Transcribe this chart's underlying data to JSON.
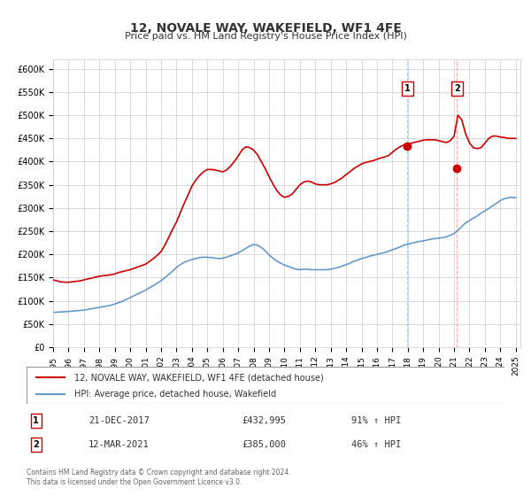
{
  "title": "12, NOVALE WAY, WAKEFIELD, WF1 4FE",
  "subtitle": "Price paid vs. HM Land Registry's House Price Index (HPI)",
  "title_fontsize": 11,
  "subtitle_fontsize": 9,
  "hpi_color": "#6699cc",
  "price_color": "#cc0000",
  "background_color": "#ffffff",
  "grid_color": "#cccccc",
  "ylim": [
    0,
    620000
  ],
  "xlim_start": 1995.0,
  "xlim_end": 2025.3,
  "yticks": [
    0,
    50000,
    100000,
    150000,
    200000,
    250000,
    300000,
    350000,
    400000,
    450000,
    500000,
    550000,
    600000
  ],
  "ytick_labels": [
    "£0",
    "£50K",
    "£100K",
    "£150K",
    "£200K",
    "£250K",
    "£300K",
    "£350K",
    "£400K",
    "£450K",
    "£500K",
    "£550K",
    "£600K"
  ],
  "xticks": [
    1995,
    1996,
    1997,
    1998,
    1999,
    2000,
    2001,
    2002,
    2003,
    2004,
    2005,
    2006,
    2007,
    2008,
    2009,
    2010,
    2011,
    2012,
    2013,
    2014,
    2015,
    2016,
    2017,
    2018,
    2019,
    2020,
    2021,
    2022,
    2023,
    2024,
    2025
  ],
  "sale1_x": 2017.97,
  "sale1_y": 432995,
  "sale1_label": "1",
  "sale1_date": "21-DEC-2017",
  "sale1_price": "£432,995",
  "sale1_hpi": "91% ↑ HPI",
  "sale2_x": 2021.19,
  "sale2_y": 385000,
  "sale2_label": "2",
  "sale2_date": "12-MAR-2021",
  "sale2_price": "£385,000",
  "sale2_hpi": "46% ↑ HPI",
  "legend_label1": "12, NOVALE WAY, WAKEFIELD, WF1 4FE (detached house)",
  "legend_label2": "HPI: Average price, detached house, Wakefield",
  "footer_line1": "Contains HM Land Registry data © Crown copyright and database right 2024.",
  "footer_line2": "This data is licensed under the Open Government Licence v3.0.",
  "hpi_x": [
    1995.0,
    1995.25,
    1995.5,
    1995.75,
    1996.0,
    1996.25,
    1996.5,
    1996.75,
    1997.0,
    1997.25,
    1997.5,
    1997.75,
    1998.0,
    1998.25,
    1998.5,
    1998.75,
    1999.0,
    1999.25,
    1999.5,
    1999.75,
    2000.0,
    2000.25,
    2000.5,
    2000.75,
    2001.0,
    2001.25,
    2001.5,
    2001.75,
    2002.0,
    2002.25,
    2002.5,
    2002.75,
    2003.0,
    2003.25,
    2003.5,
    2003.75,
    2004.0,
    2004.25,
    2004.5,
    2004.75,
    2005.0,
    2005.25,
    2005.5,
    2005.75,
    2006.0,
    2006.25,
    2006.5,
    2006.75,
    2007.0,
    2007.25,
    2007.5,
    2007.75,
    2008.0,
    2008.25,
    2008.5,
    2008.75,
    2009.0,
    2009.25,
    2009.5,
    2009.75,
    2010.0,
    2010.25,
    2010.5,
    2010.75,
    2011.0,
    2011.25,
    2011.5,
    2011.75,
    2012.0,
    2012.25,
    2012.5,
    2012.75,
    2013.0,
    2013.25,
    2013.5,
    2013.75,
    2014.0,
    2014.25,
    2014.5,
    2014.75,
    2015.0,
    2015.25,
    2015.5,
    2015.75,
    2016.0,
    2016.25,
    2016.5,
    2016.75,
    2017.0,
    2017.25,
    2017.5,
    2017.75,
    2018.0,
    2018.25,
    2018.5,
    2018.75,
    2019.0,
    2019.25,
    2019.5,
    2019.75,
    2020.0,
    2020.25,
    2020.5,
    2020.75,
    2021.0,
    2021.25,
    2021.5,
    2021.75,
    2022.0,
    2022.25,
    2022.5,
    2022.75,
    2023.0,
    2023.25,
    2023.5,
    2023.75,
    2024.0,
    2024.25,
    2024.5,
    2024.75,
    2025.0
  ],
  "hpi_y": [
    75000,
    75500,
    76000,
    76500,
    77000,
    77800,
    78500,
    79200,
    80000,
    81500,
    83000,
    84500,
    86000,
    87500,
    89000,
    90500,
    93000,
    96000,
    99000,
    103000,
    107000,
    111000,
    115000,
    119000,
    123000,
    128000,
    133000,
    138000,
    143000,
    150000,
    157000,
    164000,
    172000,
    178000,
    183000,
    186000,
    189000,
    191000,
    193000,
    194000,
    194000,
    193000,
    192000,
    191000,
    192000,
    194000,
    197000,
    200000,
    203000,
    208000,
    213000,
    218000,
    221000,
    220000,
    215000,
    208000,
    199000,
    192000,
    186000,
    181000,
    177000,
    174000,
    171000,
    168000,
    167000,
    168000,
    168000,
    167000,
    167000,
    167000,
    167000,
    167000,
    168000,
    170000,
    172000,
    175000,
    178000,
    181000,
    185000,
    188000,
    191000,
    193000,
    196000,
    198000,
    200000,
    202000,
    204000,
    207000,
    210000,
    213000,
    216000,
    220000,
    222000,
    224000,
    226000,
    228000,
    229000,
    231000,
    233000,
    234000,
    235000,
    236000,
    238000,
    241000,
    245000,
    252000,
    260000,
    268000,
    273000,
    278000,
    283000,
    289000,
    294000,
    299000,
    305000,
    310000,
    316000,
    320000,
    322000,
    323000,
    322000
  ],
  "price_x": [
    1995.0,
    1995.25,
    1995.5,
    1995.75,
    1996.0,
    1996.25,
    1996.5,
    1996.75,
    1997.0,
    1997.25,
    1997.5,
    1997.75,
    1998.0,
    1998.25,
    1998.5,
    1998.75,
    1999.0,
    1999.25,
    1999.5,
    1999.75,
    2000.0,
    2000.25,
    2000.5,
    2000.75,
    2001.0,
    2001.25,
    2001.5,
    2001.75,
    2002.0,
    2002.25,
    2002.5,
    2002.75,
    2003.0,
    2003.25,
    2003.5,
    2003.75,
    2004.0,
    2004.25,
    2004.5,
    2004.75,
    2005.0,
    2005.25,
    2005.5,
    2005.75,
    2006.0,
    2006.25,
    2006.5,
    2006.75,
    2007.0,
    2007.25,
    2007.5,
    2007.75,
    2008.0,
    2008.25,
    2008.5,
    2008.75,
    2009.0,
    2009.25,
    2009.5,
    2009.75,
    2010.0,
    2010.25,
    2010.5,
    2010.75,
    2011.0,
    2011.25,
    2011.5,
    2011.75,
    2012.0,
    2012.25,
    2012.5,
    2012.75,
    2013.0,
    2013.25,
    2013.5,
    2013.75,
    2014.0,
    2014.25,
    2014.5,
    2014.75,
    2015.0,
    2015.25,
    2015.5,
    2015.75,
    2016.0,
    2016.25,
    2016.5,
    2016.75,
    2017.0,
    2017.25,
    2017.5,
    2017.75,
    2018.0,
    2018.25,
    2018.5,
    2018.75,
    2019.0,
    2019.25,
    2019.5,
    2019.75,
    2020.0,
    2020.25,
    2020.5,
    2020.75,
    2021.0,
    2021.25,
    2021.5,
    2021.75,
    2022.0,
    2022.25,
    2022.5,
    2022.75,
    2023.0,
    2023.25,
    2023.5,
    2023.75,
    2024.0,
    2024.25,
    2024.5,
    2024.75,
    2025.0
  ],
  "price_y": [
    145000,
    143000,
    141000,
    140000,
    140000,
    141000,
    142000,
    143000,
    145000,
    147000,
    149000,
    151000,
    153000,
    154000,
    155000,
    156000,
    158000,
    161000,
    163000,
    165000,
    167000,
    170000,
    173000,
    176000,
    179000,
    185000,
    191000,
    198000,
    206000,
    220000,
    237000,
    254000,
    270000,
    290000,
    310000,
    328000,
    347000,
    360000,
    370000,
    378000,
    383000,
    383000,
    382000,
    380000,
    378000,
    382000,
    390000,
    400000,
    412000,
    425000,
    432000,
    430000,
    425000,
    415000,
    400000,
    385000,
    368000,
    352000,
    338000,
    328000,
    323000,
    325000,
    330000,
    340000,
    350000,
    356000,
    358000,
    356000,
    352000,
    350000,
    350000,
    350000,
    352000,
    355000,
    360000,
    365000,
    372000,
    378000,
    385000,
    390000,
    395000,
    398000,
    400000,
    402000,
    405000,
    408000,
    410000,
    413000,
    420000,
    427000,
    432000,
    436000,
    438000,
    440000,
    442000,
    444000,
    446000,
    447000,
    447000,
    447000,
    445000,
    443000,
    441000,
    445000,
    455000,
    500000,
    490000,
    460000,
    440000,
    430000,
    428000,
    430000,
    440000,
    450000,
    455000,
    455000,
    453000,
    452000,
    450000,
    450000,
    450000
  ]
}
